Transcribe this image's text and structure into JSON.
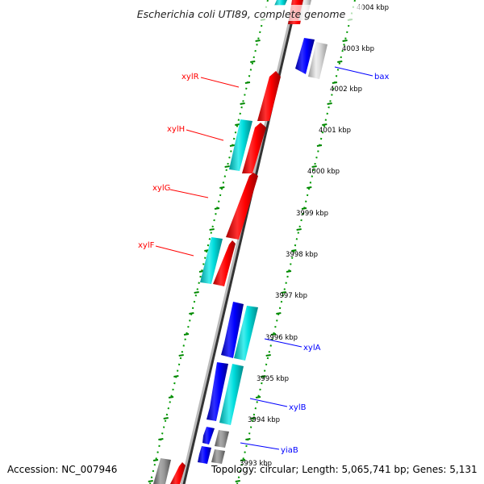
{
  "header": {
    "title": "Escherichia coli UTI89, complete genome"
  },
  "footer": {
    "accession": "Accession: NC_007946",
    "topology": "Topology: circular; Length: 5,065,741 bp; Genes: 5,131"
  },
  "colors": {
    "forward_gene": "#ff0000",
    "reverse_gene": "#0000ff",
    "forward_cds": "#00cccc",
    "other": "#888888",
    "tick": "#008800",
    "forward_label": "#ff0000",
    "reverse_label": "#0000ff"
  },
  "kbp_labels": [
    "4004 kbp",
    "4003 kbp",
    "4002 kbp",
    "4001 kbp",
    "4000 kbp",
    "3999 kbp",
    "3998 kbp",
    "3997 kbp",
    "3996 kbp",
    "3995 kbp",
    "3994 kbp",
    "3993 kbp"
  ],
  "gene_labels": {
    "forward": [
      "xylR",
      "xylH",
      "xylG",
      "xylF"
    ],
    "reverse": [
      "bax",
      "xylA",
      "xylB",
      "yiaB"
    ]
  }
}
